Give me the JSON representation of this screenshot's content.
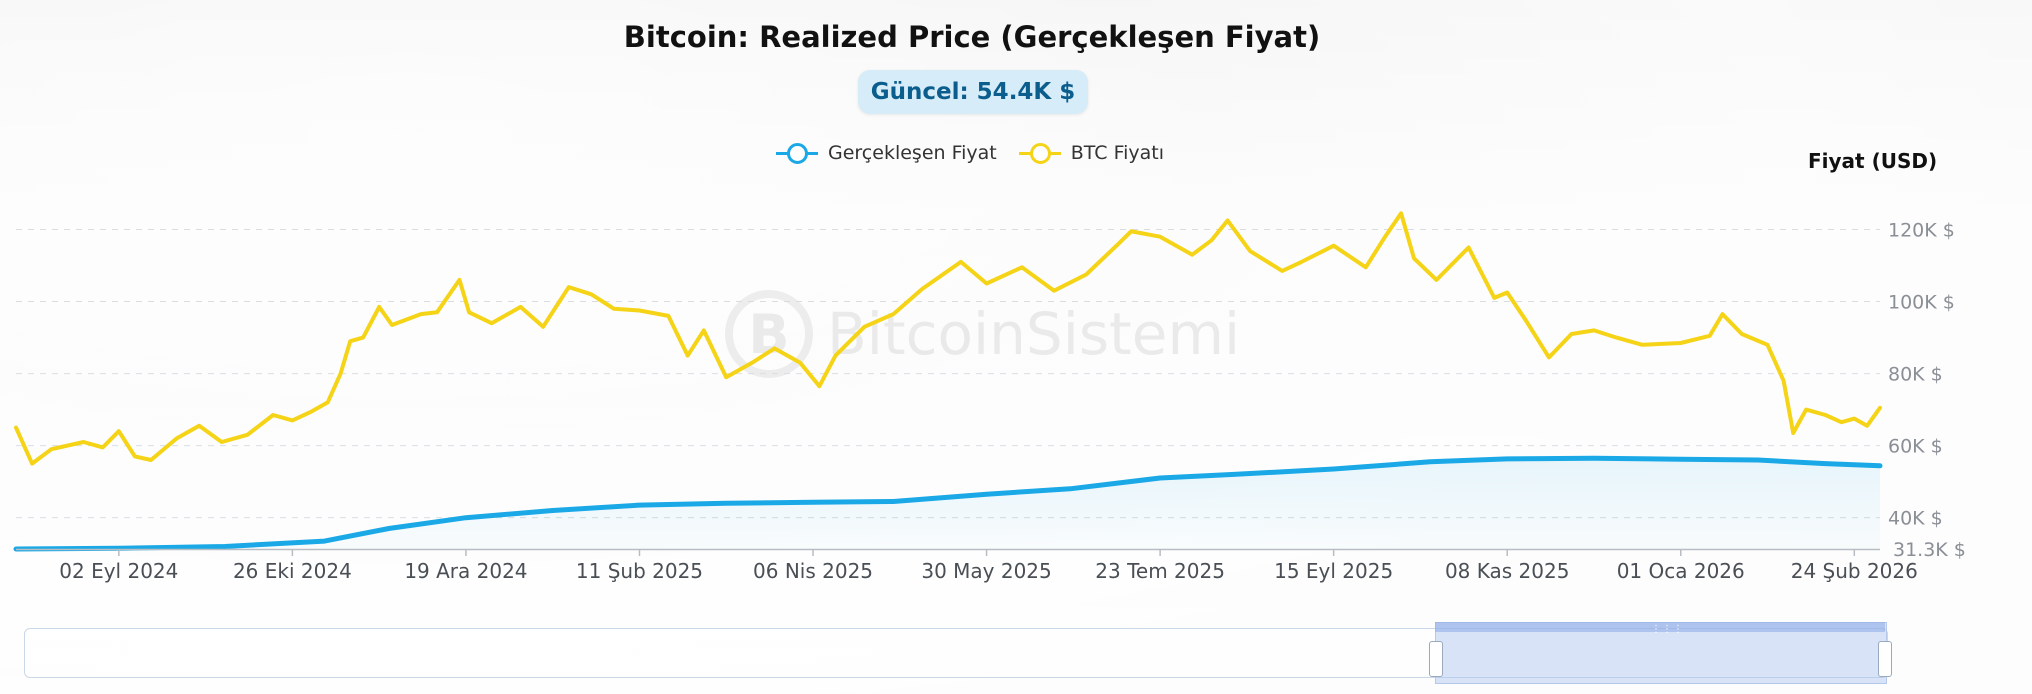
{
  "title": "Bitcoin: Realized Price (Gerçekleşen Fiyat)",
  "badge": "Güncel: 54.4K $",
  "y_axis_title": "Fiyat (USD)",
  "watermark": {
    "letter": "B",
    "text": "BitcoinSistemi"
  },
  "colors": {
    "realized": "#1aa9e6",
    "btc": "#f5d316",
    "badge_bg": "#d6ecf8",
    "badge_text": "#0a5d8c"
  },
  "chart_data": {
    "type": "line",
    "title": "Bitcoin: Realized Price (Gerçekleşen Fiyat)",
    "ylabel": "Fiyat (USD)",
    "ylim": [
      31300,
      125000
    ],
    "y_ticks": [
      {
        "value": 40000,
        "label": "40K $"
      },
      {
        "value": 60000,
        "label": "60K $"
      },
      {
        "value": 80000,
        "label": "80K $"
      },
      {
        "value": 100000,
        "label": "100K $"
      },
      {
        "value": 120000,
        "label": "120K $"
      }
    ],
    "y_min_label": "31.3K $",
    "xlim": [
      "2024-08-01",
      "2026-03-04"
    ],
    "x_ticks": [
      {
        "date": "2024-09-02",
        "label": "02 Eyl 2024"
      },
      {
        "date": "2024-10-26",
        "label": "26 Eki 2024"
      },
      {
        "date": "2024-12-19",
        "label": "19 Ara 2024"
      },
      {
        "date": "2025-02-11",
        "label": "11 Şub 2025"
      },
      {
        "date": "2025-04-06",
        "label": "06 Nis 2025"
      },
      {
        "date": "2025-05-30",
        "label": "30 May 2025"
      },
      {
        "date": "2025-07-23",
        "label": "23 Tem 2025"
      },
      {
        "date": "2025-09-15",
        "label": "15 Eyl 2025"
      },
      {
        "date": "2025-11-08",
        "label": "08 Kas 2025"
      },
      {
        "date": "2026-01-01",
        "label": "01 Oca 2026"
      },
      {
        "date": "2026-02-24",
        "label": "24 Şub 2026"
      }
    ],
    "grid": true,
    "legend_position": "top-center",
    "series": [
      {
        "name": "Gerçekleşen Fiyat",
        "color": "#1aa9e6",
        "points": [
          [
            "2024-08-01",
            31300
          ],
          [
            "2024-09-02",
            31500
          ],
          [
            "2024-10-05",
            32000
          ],
          [
            "2024-11-05",
            33500
          ],
          [
            "2024-11-25",
            37000
          ],
          [
            "2024-12-19",
            40000
          ],
          [
            "2025-01-15",
            42000
          ],
          [
            "2025-02-11",
            43500
          ],
          [
            "2025-03-10",
            44000
          ],
          [
            "2025-04-06",
            44300
          ],
          [
            "2025-05-01",
            44500
          ],
          [
            "2025-05-30",
            46500
          ],
          [
            "2025-06-25",
            48000
          ],
          [
            "2025-07-23",
            51000
          ],
          [
            "2025-08-15",
            52000
          ],
          [
            "2025-09-15",
            53500
          ],
          [
            "2025-10-15",
            55500
          ],
          [
            "2025-11-08",
            56300
          ],
          [
            "2025-12-05",
            56500
          ],
          [
            "2026-01-01",
            56200
          ],
          [
            "2026-01-25",
            56000
          ],
          [
            "2026-02-15",
            55000
          ],
          [
            "2026-03-04",
            54400
          ]
        ]
      },
      {
        "name": "BTC Fiyatı",
        "color": "#f5d316",
        "points": [
          [
            "2024-08-01",
            65000
          ],
          [
            "2024-08-06",
            55000
          ],
          [
            "2024-08-12",
            59000
          ],
          [
            "2024-08-22",
            61000
          ],
          [
            "2024-08-28",
            59500
          ],
          [
            "2024-09-02",
            64000
          ],
          [
            "2024-09-07",
            57000
          ],
          [
            "2024-09-12",
            56000
          ],
          [
            "2024-09-20",
            62000
          ],
          [
            "2024-09-27",
            65500
          ],
          [
            "2024-10-04",
            61000
          ],
          [
            "2024-10-12",
            63000
          ],
          [
            "2024-10-20",
            68500
          ],
          [
            "2024-10-26",
            67000
          ],
          [
            "2024-11-01",
            69500
          ],
          [
            "2024-11-06",
            72000
          ],
          [
            "2024-11-10",
            80000
          ],
          [
            "2024-11-13",
            89000
          ],
          [
            "2024-11-17",
            90000
          ],
          [
            "2024-11-22",
            98500
          ],
          [
            "2024-11-26",
            93500
          ],
          [
            "2024-12-05",
            96500
          ],
          [
            "2024-12-10",
            97000
          ],
          [
            "2024-12-17",
            106000
          ],
          [
            "2024-12-20",
            97000
          ],
          [
            "2024-12-27",
            94000
          ],
          [
            "2025-01-05",
            98500
          ],
          [
            "2025-01-12",
            93000
          ],
          [
            "2025-01-20",
            104000
          ],
          [
            "2025-01-27",
            102000
          ],
          [
            "2025-02-03",
            98000
          ],
          [
            "2025-02-11",
            97500
          ],
          [
            "2025-02-20",
            96000
          ],
          [
            "2025-02-26",
            85000
          ],
          [
            "2025-03-03",
            92000
          ],
          [
            "2025-03-10",
            79000
          ],
          [
            "2025-03-18",
            83000
          ],
          [
            "2025-03-25",
            87000
          ],
          [
            "2025-04-02",
            83000
          ],
          [
            "2025-04-08",
            76500
          ],
          [
            "2025-04-13",
            85000
          ],
          [
            "2025-04-22",
            93000
          ],
          [
            "2025-05-01",
            96500
          ],
          [
            "2025-05-10",
            103500
          ],
          [
            "2025-05-22",
            111000
          ],
          [
            "2025-05-30",
            105000
          ],
          [
            "2025-06-10",
            109500
          ],
          [
            "2025-06-20",
            103000
          ],
          [
            "2025-06-30",
            107500
          ],
          [
            "2025-07-10",
            116000
          ],
          [
            "2025-07-14",
            119500
          ],
          [
            "2025-07-23",
            118000
          ],
          [
            "2025-08-02",
            113000
          ],
          [
            "2025-08-08",
            117000
          ],
          [
            "2025-08-13",
            122500
          ],
          [
            "2025-08-20",
            114000
          ],
          [
            "2025-08-30",
            108500
          ],
          [
            "2025-09-05",
            111000
          ],
          [
            "2025-09-15",
            115500
          ],
          [
            "2025-09-25",
            109500
          ],
          [
            "2025-10-01",
            118000
          ],
          [
            "2025-10-06",
            124500
          ],
          [
            "2025-10-10",
            112000
          ],
          [
            "2025-10-17",
            106000
          ],
          [
            "2025-10-27",
            115000
          ],
          [
            "2025-11-04",
            101000
          ],
          [
            "2025-11-08",
            102500
          ],
          [
            "2025-11-14",
            94500
          ],
          [
            "2025-11-21",
            84500
          ],
          [
            "2025-11-28",
            91000
          ],
          [
            "2025-12-05",
            92000
          ],
          [
            "2025-12-12",
            90000
          ],
          [
            "2025-12-20",
            88000
          ],
          [
            "2026-01-01",
            88500
          ],
          [
            "2026-01-10",
            90500
          ],
          [
            "2026-01-14",
            96500
          ],
          [
            "2026-01-20",
            91000
          ],
          [
            "2026-01-28",
            88000
          ],
          [
            "2026-02-02",
            78000
          ],
          [
            "2026-02-05",
            63500
          ],
          [
            "2026-02-09",
            70000
          ],
          [
            "2026-02-15",
            68500
          ],
          [
            "2026-02-20",
            66500
          ],
          [
            "2026-02-24",
            67500
          ],
          [
            "2026-02-28",
            65500
          ],
          [
            "2026-03-04",
            70500
          ]
        ]
      }
    ]
  }
}
